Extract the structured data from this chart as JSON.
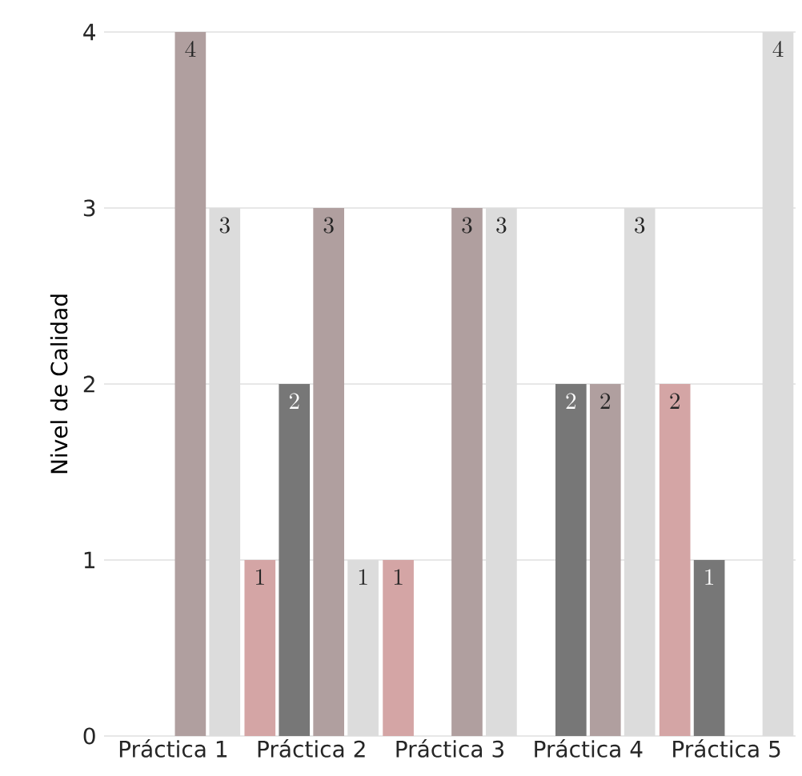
{
  "chart_data": {
    "type": "bar",
    "ylabel": "Nivel de Calidad",
    "categories": [
      "Práctica 1",
      "Práctica 2",
      "Práctica 3",
      "Práctica 4",
      "Práctica 5"
    ],
    "series": [
      {
        "color": "#d4a5a5",
        "values": [
          null,
          1,
          1,
          null,
          2
        ]
      },
      {
        "color": "#777777",
        "values": [
          null,
          2,
          null,
          2,
          1
        ]
      },
      {
        "color": "#b09f9f",
        "values": [
          4,
          3,
          3,
          2,
          null
        ]
      },
      {
        "color": "#dcdcdc",
        "values": [
          3,
          1,
          3,
          3,
          4
        ]
      }
    ],
    "ylim": [
      0,
      4
    ],
    "yticks": [
      0,
      1,
      2,
      3,
      4
    ],
    "grid": "y",
    "data_labels": true
  }
}
